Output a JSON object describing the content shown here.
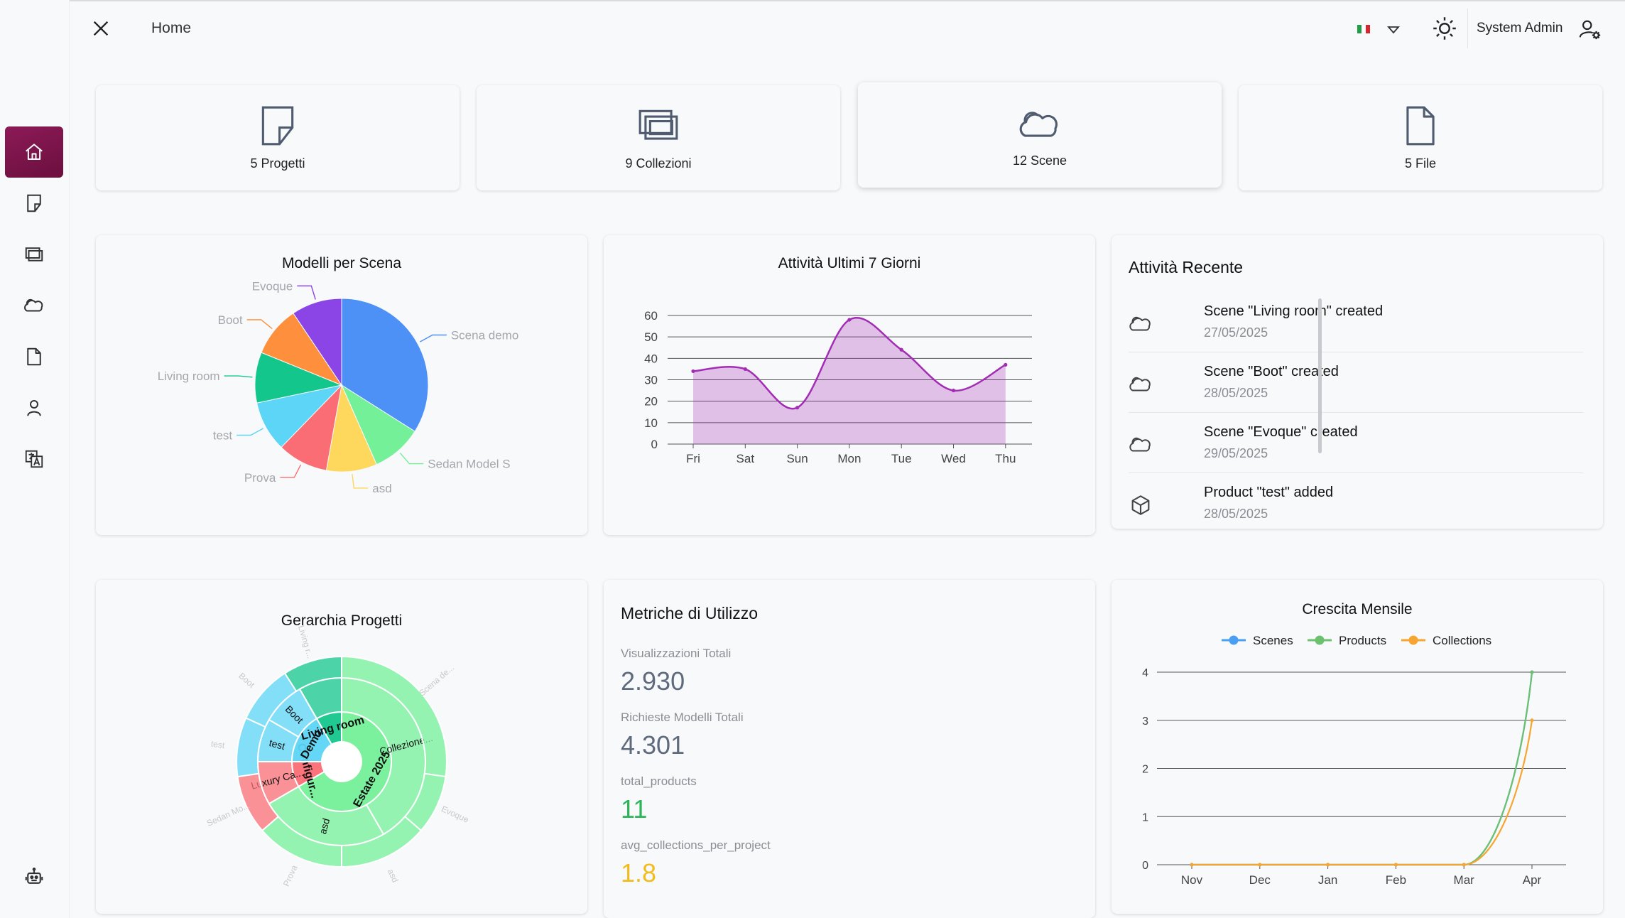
{
  "header": {
    "breadcrumb": "Home",
    "language": "Italiano",
    "user_name": "System Admin"
  },
  "sidebar": {
    "items": [
      {
        "name": "home",
        "icon": "home-icon",
        "active": true
      },
      {
        "name": "projects",
        "icon": "project-icon"
      },
      {
        "name": "collections",
        "icon": "collections-icon"
      },
      {
        "name": "scenes",
        "icon": "cloud-icon"
      },
      {
        "name": "files",
        "icon": "file-icon"
      },
      {
        "name": "users",
        "icon": "user-icon"
      },
      {
        "name": "translations",
        "icon": "translate-icon"
      }
    ],
    "bottom_icon": "robot-icon"
  },
  "stats": [
    {
      "label": "5 Progetti",
      "icon": "project-icon"
    },
    {
      "label": "9 Collezioni",
      "icon": "collections-icon"
    },
    {
      "label": "12 Scene",
      "icon": "cloud-icon"
    },
    {
      "label": "5 File",
      "icon": "file-icon"
    }
  ],
  "pie_panel": {
    "title": "Modelli per Scena",
    "chart_data": {
      "type": "pie",
      "title": "Modelli per Scena",
      "slices": [
        {
          "label": "Scena demo",
          "value": 3.6,
          "color": "#4d91f7"
        },
        {
          "label": "Sedan Model S",
          "value": 1.0,
          "color": "#74f098"
        },
        {
          "label": "asd",
          "value": 1.0,
          "color": "#fdd85d"
        },
        {
          "label": "Prova",
          "value": 1.0,
          "color": "#fb6d75"
        },
        {
          "label": "test",
          "value": 1.0,
          "color": "#5cd5f7"
        },
        {
          "label": "Living room",
          "value": 1.0,
          "color": "#13c68b"
        },
        {
          "label": "Boot",
          "value": 1.0,
          "color": "#fe8f3c"
        },
        {
          "label": "Evoque",
          "value": 1.0,
          "color": "#8b44e5"
        }
      ]
    }
  },
  "area_panel": {
    "title": "Attività Ultimi 7 Giorni",
    "chart_data": {
      "type": "area",
      "title": "Attività Ultimi 7 Giorni",
      "categories": [
        "Fri",
        "Sat",
        "Sun",
        "Mon",
        "Tue",
        "Wed",
        "Thu"
      ],
      "values": [
        34,
        35,
        17,
        58,
        44,
        25,
        37
      ],
      "ylim": [
        0,
        60
      ],
      "yticks": [
        0,
        10,
        20,
        30,
        40,
        50,
        60
      ],
      "grid": true,
      "color": "#a22db4"
    }
  },
  "activity": {
    "title": "Attività Recente",
    "items": [
      {
        "icon": "cloud-icon",
        "text": "Scene \"Living room\" created",
        "date": "27/05/2025"
      },
      {
        "icon": "cloud-icon",
        "text": "Scene \"Boot\" created",
        "date": "28/05/2025"
      },
      {
        "icon": "cloud-icon",
        "text": "Scene \"Evoque\" created",
        "date": "29/05/2025"
      },
      {
        "icon": "cube-icon",
        "text": "Product \"test\" added",
        "date": "28/05/2025"
      }
    ]
  },
  "sunburst_panel": {
    "title": "Gerarchia Progetti",
    "chart_data": {
      "type": "sunburst",
      "title": "Gerarchia Progetti",
      "rings": [
        {
          "level": 1,
          "segments": [
            {
              "label": "Estate 2025",
              "value": 8,
              "color": "#74f098"
            },
            {
              "label": "Configur...",
              "value": 1,
              "color": "#fb6d75"
            },
            {
              "label": "Demo",
              "value": 2,
              "color": "#5cd5f7"
            },
            {
              "label": "Living room",
              "value": 1,
              "color": "#13c68b"
            }
          ]
        },
        {
          "level": 2,
          "segments": [
            {
              "label": "Collezione...",
              "value": 5,
              "color": "#74f098"
            },
            {
              "label": "asd",
              "value": 3,
              "color": "#74f098"
            },
            {
              "label": "Luxury Ca...",
              "value": 1,
              "color": "#fb6d75"
            },
            {
              "label": "test",
              "value": 1,
              "color": "#5cd5f7"
            },
            {
              "label": "Boot",
              "value": 1,
              "color": "#5cd5f7"
            },
            {
              "label": "",
              "value": 1,
              "color": "#13c68b"
            }
          ]
        },
        {
          "level": 3,
          "segments": [
            {
              "label": "Scena de...",
              "value": 3,
              "color": "#74f098"
            },
            {
              "label": "Evoque",
              "value": 1,
              "color": "#74f098"
            },
            {
              "label": "asd",
              "value": 1.5,
              "color": "#74f098"
            },
            {
              "label": "Prova",
              "value": 1.5,
              "color": "#74f098"
            },
            {
              "label": "Sedan Mo...",
              "value": 1,
              "color": "#fb6d75"
            },
            {
              "label": "test",
              "value": 1,
              "color": "#5cd5f7"
            },
            {
              "label": "Boot",
              "value": 1,
              "color": "#5cd5f7"
            },
            {
              "label": "Living r...",
              "value": 1,
              "color": "#13c68b"
            }
          ]
        }
      ]
    }
  },
  "metrics": {
    "title": "Metriche di Utilizzo",
    "items": [
      {
        "label": "Visualizzazioni Totali",
        "value": "2.930",
        "color": "#5f6a7d"
      },
      {
        "label": "Richieste Modelli Totali",
        "value": "4.301",
        "color": "#5f6a7d"
      },
      {
        "label": "total_products",
        "value": "11",
        "color": "#2bb559"
      },
      {
        "label": "avg_collections_per_project",
        "value": "1.8",
        "color": "#f3bc1d"
      }
    ]
  },
  "growth_panel": {
    "title": "Crescita Mensile",
    "chart_data": {
      "type": "line",
      "title": "Crescita Mensile",
      "categories": [
        "Nov",
        "Dec",
        "Jan",
        "Feb",
        "Mar",
        "Apr"
      ],
      "ylim": [
        0,
        4
      ],
      "yticks": [
        0,
        1,
        2,
        3,
        4
      ],
      "grid": true,
      "legend": "top",
      "series": [
        {
          "name": "Scenes",
          "values": [
            0,
            0,
            0,
            0,
            0,
            4
          ],
          "color": "#4a9ff2"
        },
        {
          "name": "Products",
          "values": [
            0,
            0,
            0,
            0,
            0,
            4
          ],
          "color": "#6cc16e"
        },
        {
          "name": "Collections",
          "values": [
            0,
            0,
            0,
            0,
            0,
            3
          ],
          "color": "#f6a531"
        }
      ]
    }
  }
}
